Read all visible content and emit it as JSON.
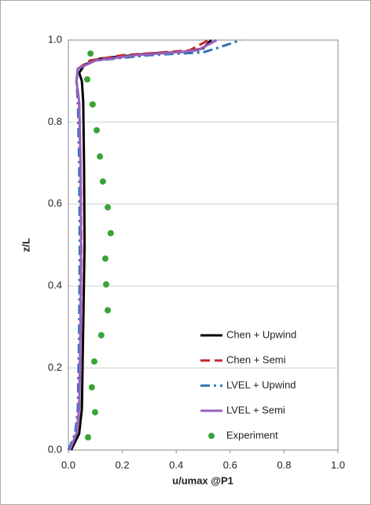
{
  "chart_data": {
    "type": "line",
    "x_label": "u/umax @P1",
    "y_label": "z/L",
    "xlim": [
      0,
      1
    ],
    "ylim": [
      0,
      1
    ],
    "xticks": [
      {
        "value": 0,
        "label": "0.0"
      },
      0.2,
      0.4,
      0.6,
      0.8,
      {
        "value": 1,
        "label": "1.0"
      }
    ],
    "yticks": [
      {
        "value": 0,
        "label": "0.0"
      },
      0.2,
      0.4,
      0.6,
      0.8,
      {
        "value": 1,
        "label": "1.0"
      }
    ],
    "grid": true,
    "legend": "lower right",
    "series": [
      {
        "name": "Chen + Upwind",
        "color": "#000000",
        "style": "solid",
        "x": [
          0.01,
          0.04,
          0.05,
          0.055,
          0.06,
          0.058,
          0.055,
          0.05,
          0.04,
          0.06,
          0.12,
          0.3,
          0.45,
          0.5,
          0.53
        ],
        "values": [
          0,
          0.04,
          0.1,
          0.3,
          0.5,
          0.7,
          0.85,
          0.9,
          0.92,
          0.94,
          0.955,
          0.967,
          0.972,
          0.98,
          1.0
        ]
      },
      {
        "name": "Chen + Semi",
        "color": "#c0272d",
        "style": "dashed",
        "x": [
          0.005,
          0.03,
          0.04,
          0.045,
          0.048,
          0.045,
          0.04,
          0.03,
          0.035,
          0.08,
          0.2,
          0.35,
          0.45,
          0.52
        ],
        "values": [
          0,
          0.04,
          0.1,
          0.3,
          0.5,
          0.7,
          0.85,
          0.9,
          0.93,
          0.95,
          0.963,
          0.97,
          0.975,
          1.0
        ]
      },
      {
        "name": "LVEL + Upwind",
        "color": "#2e75b6",
        "style": "dashdot",
        "x": [
          0.0,
          0.025,
          0.035,
          0.04,
          0.042,
          0.04,
          0.035,
          0.03,
          0.035,
          0.1,
          0.3,
          0.5,
          0.55,
          0.64
        ],
        "values": [
          0,
          0.04,
          0.1,
          0.3,
          0.5,
          0.7,
          0.85,
          0.9,
          0.93,
          0.95,
          0.963,
          0.97,
          0.98,
          1.0
        ]
      },
      {
        "name": "LVEL + Semi",
        "color": "#9b5fc0",
        "style": "solid",
        "x": [
          0.005,
          0.03,
          0.04,
          0.045,
          0.047,
          0.045,
          0.04,
          0.03,
          0.035,
          0.1,
          0.25,
          0.4,
          0.48,
          0.55
        ],
        "values": [
          0,
          0.04,
          0.1,
          0.3,
          0.5,
          0.7,
          0.85,
          0.9,
          0.93,
          0.95,
          0.963,
          0.97,
          0.975,
          1.0
        ]
      },
      {
        "name": "Experiment",
        "color": "#3aa335",
        "style": "markers",
        "x": [
          0.073,
          0.099,
          0.087,
          0.096,
          0.122,
          0.146,
          0.14,
          0.137,
          0.157,
          0.146,
          0.128,
          0.117,
          0.105,
          0.09,
          0.07,
          0.082
        ],
        "values": [
          0.031,
          0.092,
          0.153,
          0.216,
          0.28,
          0.341,
          0.404,
          0.467,
          0.529,
          0.592,
          0.655,
          0.716,
          0.78,
          0.843,
          0.904,
          0.967
        ]
      }
    ]
  }
}
